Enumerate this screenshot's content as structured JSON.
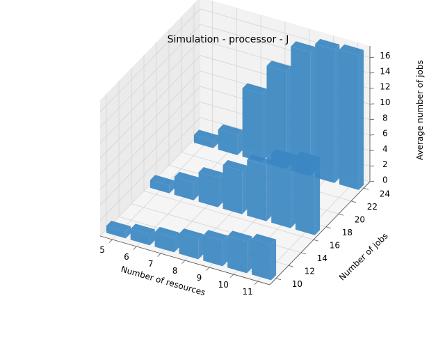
{
  "chart_data": {
    "type": "bar3d",
    "title": "Simulation - processor - J",
    "xlabel": "Number of resources",
    "ylabel": "Number of jobs",
    "zlabel": "Average number of jobs",
    "x_ticks": [
      "5",
      "6",
      "7",
      "8",
      "9",
      "10",
      "11"
    ],
    "y_ticks": [
      "10",
      "12",
      "14",
      "16",
      "18",
      "20",
      "22",
      "24"
    ],
    "z_ticks": [
      "0",
      "2",
      "4",
      "6",
      "8",
      "10",
      "12",
      "14",
      "16"
    ],
    "xlim": [
      4.5,
      11.5
    ],
    "ylim": [
      9,
      25
    ],
    "zlim": [
      0,
      17.5
    ],
    "bar_color": "#3a87c2",
    "series": [
      {
        "y": 10,
        "x": [
          5,
          6,
          7,
          8,
          9,
          10,
          11
        ],
        "values": [
          0.9,
          1.4,
          1.9,
          2.6,
          3.3,
          4.1,
          4.6
        ]
      },
      {
        "y": 17,
        "x": [
          5,
          6,
          7,
          8,
          9,
          10,
          11
        ],
        "values": [
          1.0,
          2.3,
          3.8,
          5.6,
          7.2,
          8.8,
          9.4
        ]
      },
      {
        "y": 24,
        "x": [
          5,
          6,
          7,
          8,
          9,
          10,
          11
        ],
        "values": [
          1.0,
          2.6,
          8.8,
          12.6,
          16.0,
          17.2,
          17.4
        ]
      }
    ]
  }
}
